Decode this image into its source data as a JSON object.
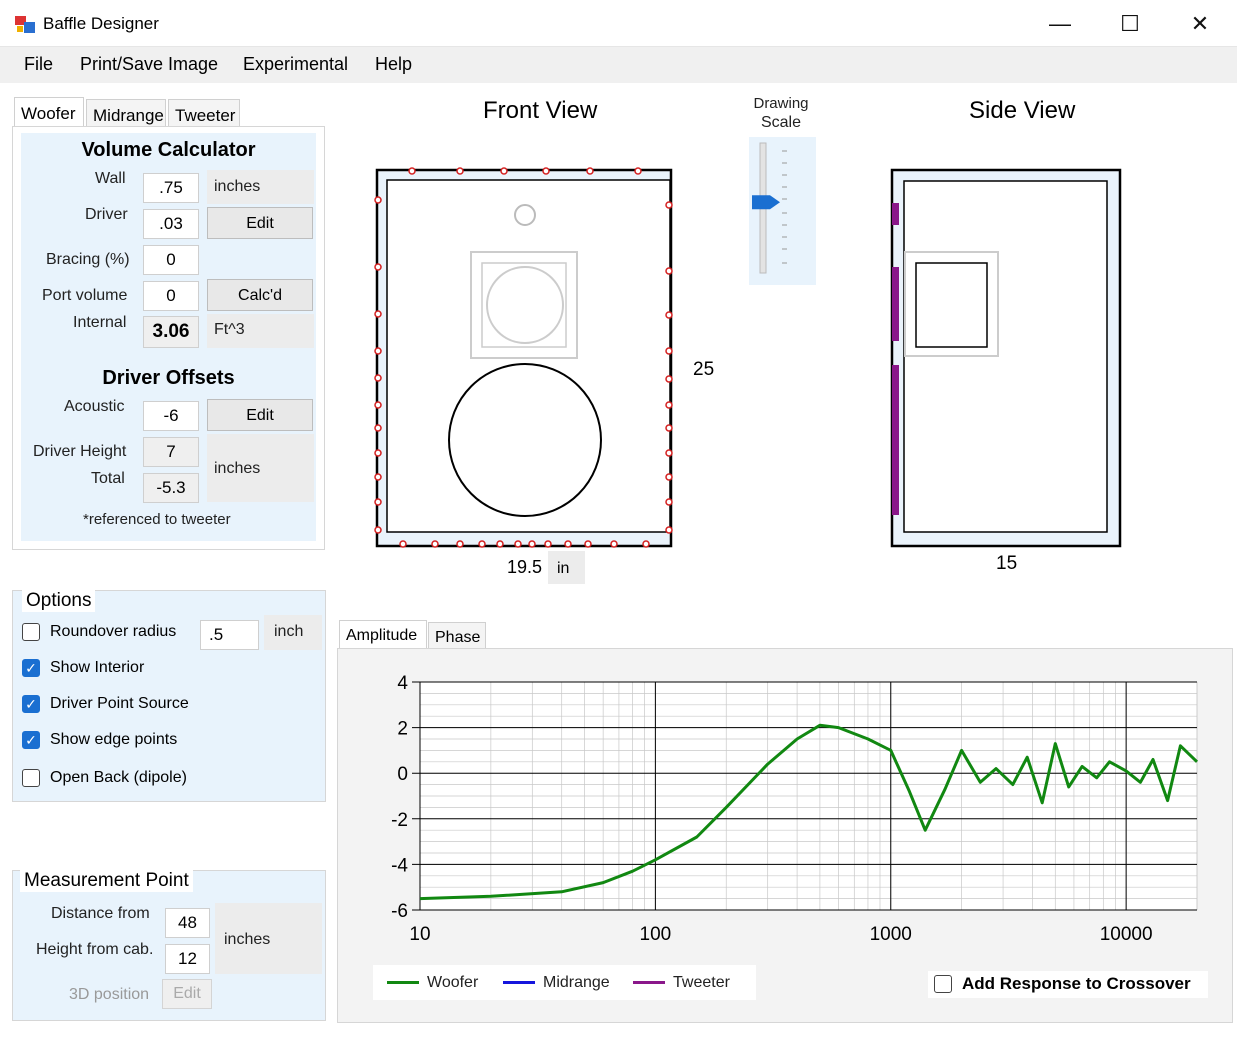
{
  "window": {
    "title": "Baffle Designer",
    "minimize": "—",
    "maximize": "☐",
    "close": "✕"
  },
  "menu": [
    "File",
    "Print/Save Image",
    "Experimental",
    "Help"
  ],
  "driver_tabs": [
    "Woofer",
    "Midrange",
    "Tweeter"
  ],
  "volume_calculator": {
    "title": "Volume Calculator",
    "wall_label": "Wall",
    "wall_value": ".75",
    "wall_unit": "inches",
    "driver_label": "Driver",
    "driver_value": ".03",
    "driver_edit": "Edit",
    "bracing_label": "Bracing (%)",
    "bracing_value": "0",
    "port_label": "Port volume",
    "port_value": "0",
    "port_button": "Calc'd",
    "internal_label": "Internal",
    "internal_value": "3.06",
    "internal_unit": "Ft^3"
  },
  "driver_offsets": {
    "title": "Driver Offsets",
    "acoustic_label": "Acoustic",
    "acoustic_value": "-6",
    "acoustic_edit": "Edit",
    "height_label": "Driver Height",
    "height_value": "7",
    "total_label": "Total",
    "total_value": "-5.3",
    "unit": "inches",
    "note": "*referenced to tweeter"
  },
  "options": {
    "title": "Options",
    "roundover_label": "Roundover radius",
    "roundover_value": ".5",
    "roundover_unit": "inch",
    "items": [
      {
        "label": "Roundover radius",
        "checked": false
      },
      {
        "label": "Show Interior",
        "checked": true
      },
      {
        "label": "Driver Point Source",
        "checked": true
      },
      {
        "label": "Show edge points",
        "checked": true
      },
      {
        "label": "Open Back (dipole)",
        "checked": false
      }
    ]
  },
  "measurement": {
    "title": "Measurement Point",
    "distance_label": "Distance from",
    "distance_value": "48",
    "height_label": "Height from cab.",
    "height_value": "12",
    "unit": "inches",
    "pos3d_label": "3D position",
    "pos3d_edit": "Edit"
  },
  "views": {
    "front_title": "Front View",
    "side_title": "Side View",
    "front_width": "19.5",
    "front_width_unit": "in",
    "height": "25",
    "side_depth": "15",
    "scale_label_1": "Drawing",
    "scale_label_2": "Scale",
    "scale_level": 0.55
  },
  "response_tabs": [
    "Amplitude",
    "Phase"
  ],
  "chart_data": {
    "type": "line",
    "title": "",
    "xlabel": "",
    "ylabel": "",
    "xscale": "log",
    "xlim": [
      10,
      20000
    ],
    "ylim": [
      -6,
      4
    ],
    "xticks": [
      10,
      100,
      1000,
      10000
    ],
    "xtick_labels": [
      "10",
      "100",
      "1000",
      "10000"
    ],
    "yticks": [
      4,
      2,
      0,
      -2,
      -4,
      -6
    ],
    "ytick_labels": [
      "4",
      "2",
      "0",
      "-2",
      "-4",
      "-6"
    ],
    "grid": true,
    "series": [
      {
        "name": "Woofer",
        "color": "#118811",
        "x": [
          10,
          20,
          40,
          60,
          80,
          100,
          150,
          200,
          300,
          400,
          500,
          600,
          800,
          1000,
          1200,
          1400,
          1700,
          2000,
          2400,
          2800,
          3300,
          3800,
          4400,
          5000,
          5700,
          6500,
          7500,
          8500,
          10000,
          11500,
          13000,
          15000,
          17000,
          20000
        ],
        "y": [
          -5.5,
          -5.4,
          -5.2,
          -4.8,
          -4.3,
          -3.8,
          -2.8,
          -1.5,
          0.4,
          1.5,
          2.1,
          2.0,
          1.5,
          1.0,
          -0.8,
          -2.5,
          -0.7,
          1.0,
          -0.4,
          0.2,
          -0.5,
          0.7,
          -1.3,
          1.3,
          -0.6,
          0.3,
          -0.2,
          0.5,
          0.1,
          -0.4,
          0.6,
          -1.2,
          1.2,
          0.5
        ]
      },
      {
        "name": "Midrange",
        "color": "#1515dd",
        "x": [],
        "y": []
      },
      {
        "name": "Tweeter",
        "color": "#8a178a",
        "x": [],
        "y": []
      }
    ],
    "legend_position": "bottom-left"
  },
  "add_response": {
    "label": "Add Response to Crossover",
    "checked": false
  }
}
